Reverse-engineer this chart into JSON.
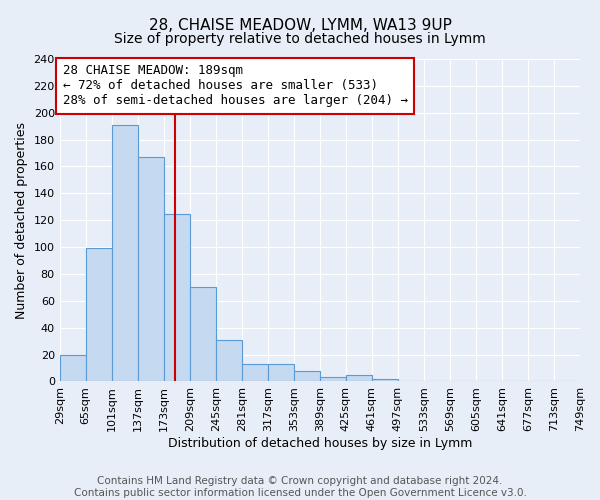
{
  "title": "28, CHAISE MEADOW, LYMM, WA13 9UP",
  "subtitle": "Size of property relative to detached houses in Lymm",
  "xlabel": "Distribution of detached houses by size in Lymm",
  "ylabel": "Number of detached properties",
  "bin_labels": [
    "29sqm",
    "65sqm",
    "101sqm",
    "137sqm",
    "173sqm",
    "209sqm",
    "245sqm",
    "281sqm",
    "317sqm",
    "353sqm",
    "389sqm",
    "425sqm",
    "461sqm",
    "497sqm",
    "533sqm",
    "569sqm",
    "605sqm",
    "641sqm",
    "677sqm",
    "713sqm",
    "749sqm"
  ],
  "bar_values": [
    20,
    99,
    191,
    167,
    125,
    70,
    31,
    13,
    13,
    8,
    3,
    5,
    2,
    0,
    0,
    0,
    0,
    0,
    0,
    0
  ],
  "bin_edges": [
    29,
    65,
    101,
    137,
    173,
    209,
    245,
    281,
    317,
    353,
    389,
    425,
    461,
    497,
    533,
    569,
    605,
    641,
    677,
    713,
    749
  ],
  "bar_color": "#c5d9f0",
  "bar_edge_color": "#5b9bd5",
  "property_value": 189,
  "vline_color": "#cc0000",
  "annotation_line1": "28 CHAISE MEADOW: 189sqm",
  "annotation_line2": "← 72% of detached houses are smaller (533)",
  "annotation_line3": "28% of semi-detached houses are larger (204) →",
  "annotation_box_color": "#ffffff",
  "annotation_box_edge": "#cc0000",
  "ylim": [
    0,
    240
  ],
  "yticks": [
    0,
    20,
    40,
    60,
    80,
    100,
    120,
    140,
    160,
    180,
    200,
    220,
    240
  ],
  "footer_text": "Contains HM Land Registry data © Crown copyright and database right 2024.\nContains public sector information licensed under the Open Government Licence v3.0.",
  "fig_facecolor": "#e8eef7",
  "ax_facecolor": "#e8eef7",
  "grid_color": "#ffffff",
  "title_fontsize": 11,
  "subtitle_fontsize": 10,
  "axis_label_fontsize": 9,
  "tick_fontsize": 8,
  "annotation_fontsize": 9,
  "footer_fontsize": 7.5
}
